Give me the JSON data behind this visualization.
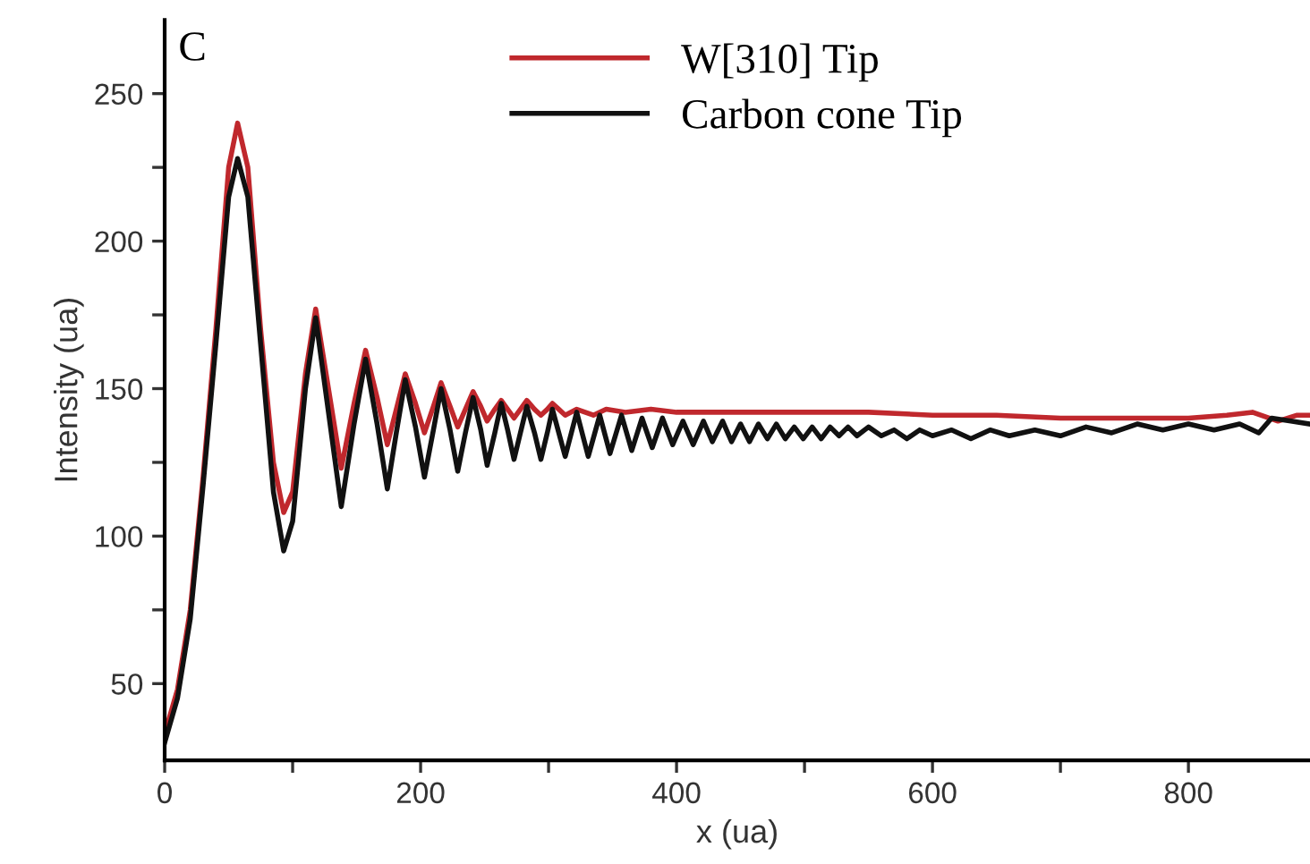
{
  "chart_data": {
    "type": "line",
    "xlabel": "x (ua)",
    "ylabel": "Intensity (ua)",
    "annotations": [
      "C"
    ],
    "xlim": [
      0,
      895
    ],
    "ylim": [
      24,
      275
    ],
    "xticks": [
      0,
      {
        "value": 100,
        "label": null
      },
      200,
      {
        "value": 300,
        "label": null
      },
      400,
      {
        "value": 500,
        "label": null
      },
      600,
      {
        "value": 700,
        "label": null
      },
      800
    ],
    "yticks": [
      50,
      {
        "value": 75,
        "label": null
      },
      100,
      {
        "value": 125,
        "label": null
      },
      150,
      {
        "value": 175,
        "label": null
      },
      200,
      {
        "value": 225,
        "label": null
      },
      250
    ],
    "grid": false,
    "legend": "top right",
    "marker": "none",
    "line_style": "solid",
    "series": [
      {
        "name": "W[310] Tip",
        "color": "#c0282d",
        "x": [
          0,
          10,
          20,
          30,
          40,
          50,
          57,
          65,
          75,
          85,
          93,
          100,
          110,
          118,
          128,
          138,
          148,
          157,
          166,
          174,
          181,
          188,
          196,
          203,
          210,
          216,
          223,
          229,
          235,
          241,
          247,
          252,
          258,
          263,
          268,
          273,
          278,
          283,
          289,
          294,
          299,
          303,
          308,
          313,
          322,
          335,
          345,
          360,
          380,
          400,
          450,
          500,
          550,
          600,
          650,
          700,
          750,
          800,
          830,
          850,
          870,
          885,
          895
        ],
        "values": [
          33,
          48,
          75,
          120,
          170,
          225,
          240,
          225,
          170,
          125,
          108,
          115,
          155,
          177,
          150,
          123,
          145,
          163,
          147,
          131,
          143,
          155,
          145,
          135,
          144,
          152,
          144,
          137,
          143,
          149,
          144,
          139,
          143,
          146,
          143,
          140,
          143,
          146,
          143,
          141,
          143,
          145,
          143,
          141,
          143,
          141,
          143,
          142,
          143,
          142,
          142,
          142,
          142,
          141,
          141,
          140,
          140,
          140,
          141,
          142,
          139,
          141,
          141
        ]
      },
      {
        "name": "Carbon cone Tip",
        "color": "#111111",
        "x": [
          0,
          10,
          20,
          30,
          40,
          50,
          57,
          65,
          75,
          85,
          93,
          100,
          110,
          118,
          128,
          138,
          148,
          157,
          166,
          174,
          181,
          188,
          196,
          203,
          210,
          216,
          223,
          229,
          235,
          241,
          247,
          252,
          258,
          263,
          268,
          273,
          278,
          283,
          289,
          294,
          299,
          303,
          308,
          313,
          322,
          331,
          340,
          348,
          357,
          365,
          373,
          381,
          389,
          397,
          405,
          413,
          421,
          428,
          436,
          443,
          450,
          457,
          464,
          471,
          478,
          485,
          492,
          499,
          506,
          513,
          520,
          527,
          534,
          541,
          550,
          560,
          570,
          580,
          590,
          600,
          615,
          630,
          645,
          660,
          680,
          700,
          720,
          740,
          760,
          780,
          800,
          820,
          840,
          855,
          865,
          880,
          895
        ],
        "values": [
          30,
          45,
          72,
          117,
          165,
          215,
          228,
          215,
          165,
          115,
          95,
          105,
          150,
          174,
          142,
          110,
          138,
          160,
          138,
          116,
          135,
          153,
          137,
          120,
          136,
          150,
          136,
          122,
          135,
          147,
          136,
          124,
          135,
          145,
          136,
          126,
          135,
          144,
          135,
          126,
          135,
          143,
          135,
          127,
          142,
          127,
          141,
          128,
          141,
          129,
          140,
          130,
          140,
          131,
          139,
          131,
          139,
          132,
          139,
          132,
          138,
          132,
          138,
          133,
          138,
          133,
          137,
          133,
          137,
          133,
          137,
          134,
          137,
          134,
          137,
          134,
          136,
          133,
          136,
          134,
          136,
          133,
          136,
          134,
          136,
          134,
          137,
          135,
          138,
          136,
          138,
          136,
          138,
          135,
          140,
          139,
          138
        ]
      }
    ]
  }
}
